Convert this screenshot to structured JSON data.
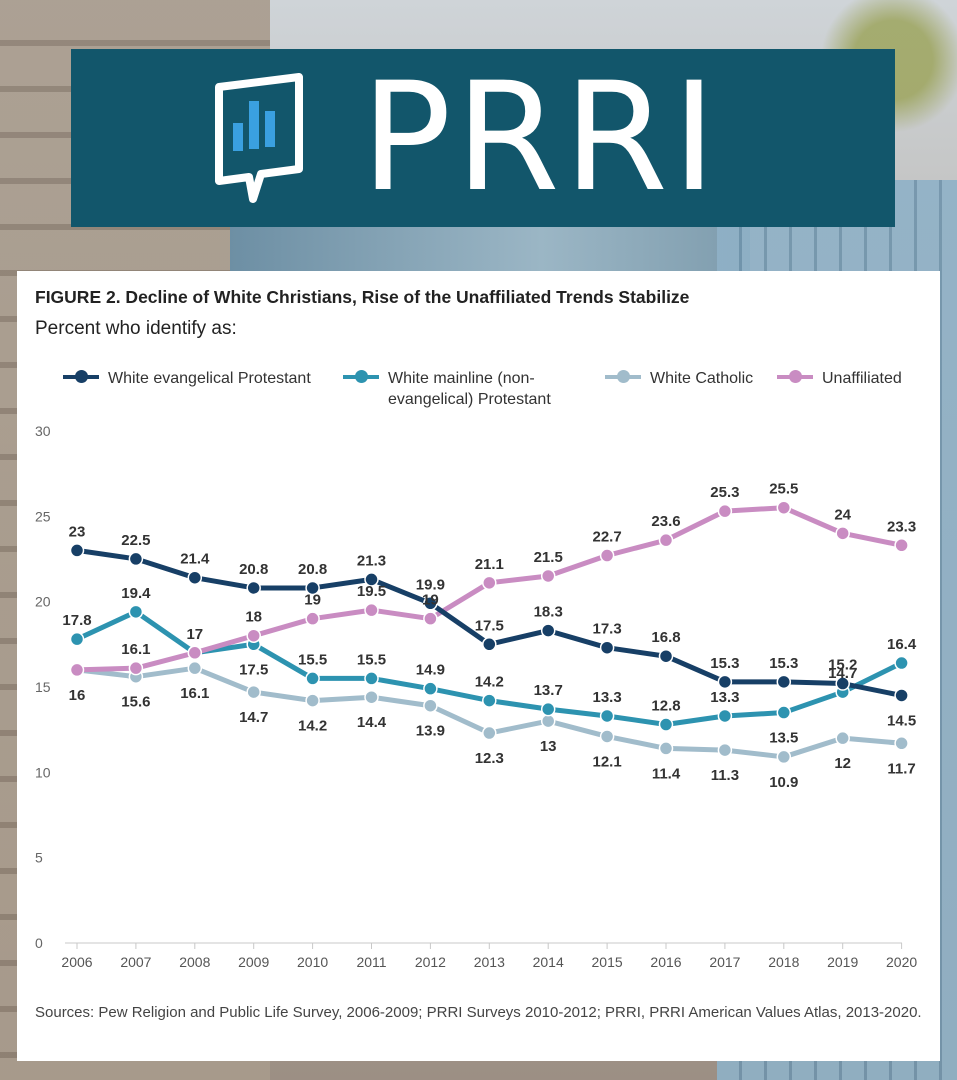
{
  "brand": {
    "name": "PRRI",
    "banner_color": "#12566b",
    "logo_icon": "bar-chart-speech-bubble-icon"
  },
  "figure": {
    "title": "FIGURE 2.  Decline of White Christians, Rise of the Unaffiliated Trends Stabilize",
    "subtitle": "Percent who identify as:",
    "sources": "Sources: Pew Religion and Public Life Survey, 2006-2009; PRRI Surveys 2010-2012; PRRI, PRRI American Values Atlas, 2013-2020."
  },
  "legend": [
    {
      "label": "White evangelical Protestant",
      "color": "#173f66"
    },
    {
      "label": "White mainline (non-evangelical) Protestant",
      "label_line1": "White mainline (non-",
      "label_line2": "evangelical) Protestant",
      "color": "#2d93b0"
    },
    {
      "label": "White Catholic",
      "color": "#a1bccb"
    },
    {
      "label": "Unaffiliated",
      "color": "#c98cc2"
    }
  ],
  "chart_data": {
    "type": "line",
    "title": "FIGURE 2.  Decline of White Christians, Rise of the Unaffiliated Trends Stabilize",
    "subtitle": "Percent who identify as:",
    "x": [
      "2006",
      "2007",
      "2008",
      "2009",
      "2010",
      "2011",
      "2012",
      "2013",
      "2014",
      "2015",
      "2016",
      "2017",
      "2018",
      "2019",
      "2020"
    ],
    "ylim": [
      0,
      30
    ],
    "yticks": [
      0,
      5,
      10,
      15,
      20,
      25,
      30
    ],
    "grid": false,
    "legend_position": "top",
    "series": [
      {
        "name": "White evangelical Protestant",
        "color": "#173f66",
        "values": [
          23,
          22.5,
          21.4,
          20.8,
          20.8,
          21.3,
          19.9,
          17.5,
          18.3,
          17.3,
          16.8,
          15.3,
          15.3,
          15.2,
          14.5
        ]
      },
      {
        "name": "White mainline (non-evangelical) Protestant",
        "color": "#2d93b0",
        "values": [
          17.8,
          19.4,
          17,
          17.5,
          15.5,
          15.5,
          14.9,
          14.2,
          13.7,
          13.3,
          12.8,
          13.3,
          13.5,
          14.7,
          16.4
        ]
      },
      {
        "name": "White Catholic",
        "color": "#a1bccb",
        "values": [
          16,
          15.6,
          16.1,
          14.7,
          14.2,
          14.4,
          13.9,
          12.3,
          13,
          12.1,
          11.4,
          11.3,
          10.9,
          12,
          11.7
        ]
      },
      {
        "name": "Unaffiliated",
        "color": "#c98cc2",
        "values": [
          16,
          16.1,
          17,
          18,
          19,
          19.5,
          19,
          21.1,
          21.5,
          22.7,
          23.6,
          25.3,
          25.5,
          24,
          23.3
        ]
      }
    ],
    "data_labels": [
      {
        "series": 0,
        "labels": [
          "23",
          "22.5",
          "21.4",
          "20.8",
          "20.8",
          "21.3",
          "19.9",
          "17.5",
          "18.3",
          "17.3",
          "16.8",
          "15.3",
          "15.3",
          "15.2",
          "14.5"
        ]
      },
      {
        "series": 1,
        "labels": [
          "17.8",
          "19.4",
          "17",
          "17.5",
          "15.5",
          "15.5",
          "14.9",
          "14.2",
          "13.7",
          "13.3",
          "12.8",
          "13.3",
          "13.5",
          "14.7",
          "16.4"
        ]
      },
      {
        "series": 2,
        "labels": [
          "16",
          "15.6",
          "16.1",
          "14.7",
          "14.2",
          "14.4",
          "13.9",
          "12.3",
          "13",
          "12.1",
          "11.4",
          "11.3",
          "10.9",
          "12",
          "11.7"
        ]
      },
      {
        "series": 3,
        "labels": [
          "",
          "16.1",
          "",
          "18",
          "19",
          "19.5",
          "19",
          "21.1",
          "21.5",
          "22.7",
          "23.6",
          "25.3",
          "25.5",
          "24",
          "23.3"
        ]
      }
    ]
  }
}
